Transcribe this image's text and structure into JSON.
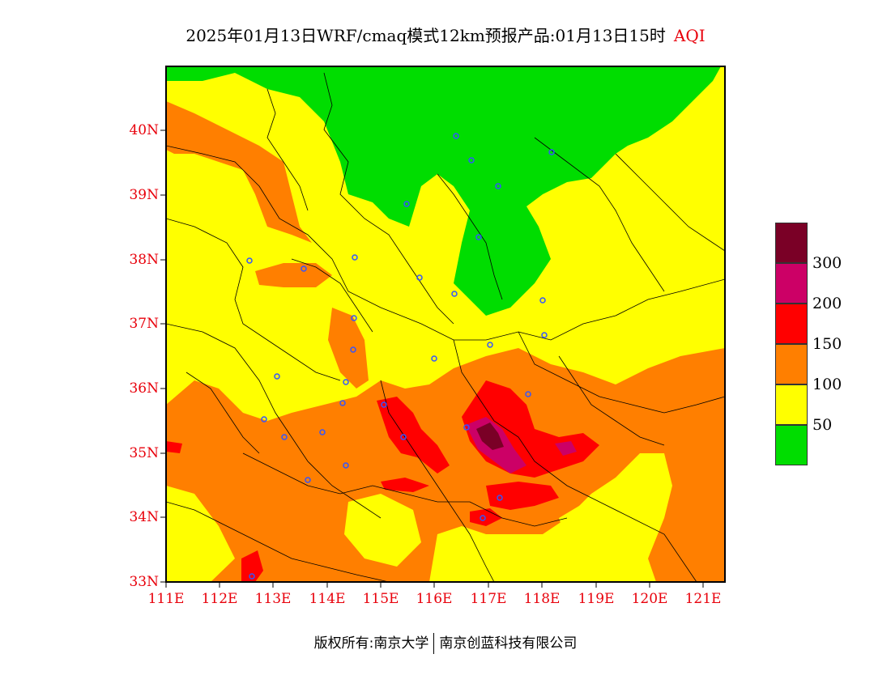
{
  "title": {
    "main": "2025年01月13日WRF/cmaq模式12km预报产品:01月13日15时",
    "product": "AQI"
  },
  "axes": {
    "lat_labels": [
      "40N",
      "39N",
      "38N",
      "37N",
      "36N",
      "35N",
      "34N",
      "33N"
    ],
    "lon_labels": [
      "111E",
      "112E",
      "113E",
      "114E",
      "115E",
      "116E",
      "117E",
      "118E",
      "119E",
      "120E",
      "121E"
    ]
  },
  "legend": {
    "labels": [
      "300",
      "200",
      "150",
      "100",
      "50"
    ],
    "colors": [
      "#7a0026",
      "#cc0066",
      "#ff0000",
      "#ff7f00",
      "#ffff00",
      "#00dd00"
    ]
  },
  "map_colors": {
    "good": "#00dd00",
    "moderate": "#ffff00",
    "light": "#ff7f00",
    "medium": "#ff0000",
    "heavy": "#cc0066",
    "severe": "#7a0026",
    "boundary": "#000000",
    "station": "#3355ff"
  },
  "footer": {
    "copyright": "版权所有:南京大学",
    "company": "南京创蓝科技有限公司"
  }
}
